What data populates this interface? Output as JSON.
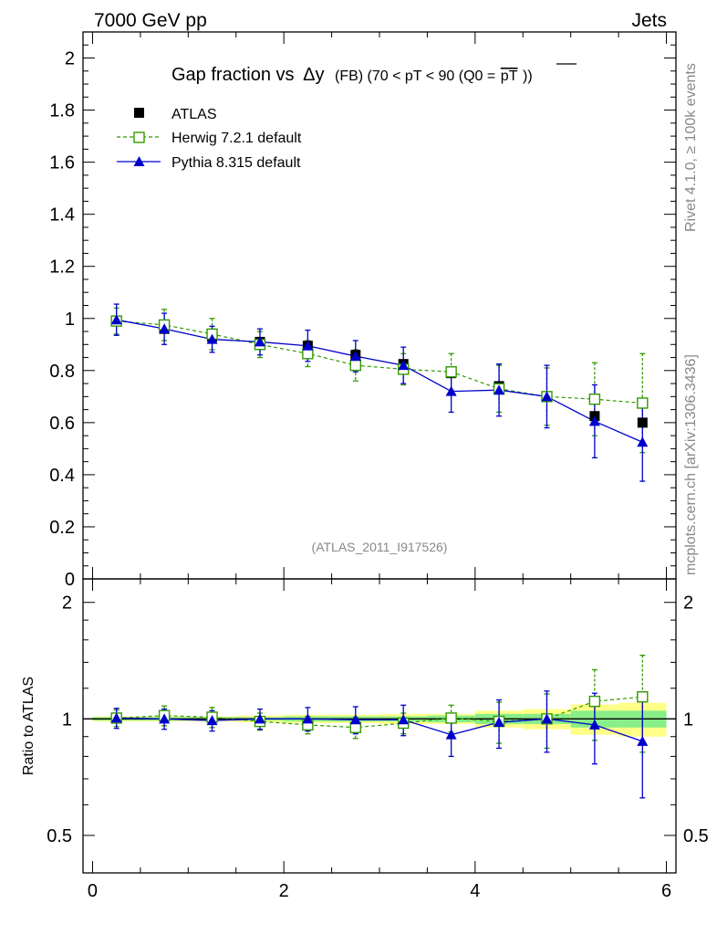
{
  "header": {
    "left": "7000 GeV pp",
    "right": "Jets"
  },
  "side_labels": {
    "rivet": "Rivet 4.1.0, ≥ 100k events",
    "mcplots": "mcplots.cern.ch [arXiv:1306.3436]"
  },
  "chart_data": [
    {
      "type": "scatter",
      "title": "Gap fraction vsΔy (FB) (70 < pT <  90 (Q0 =pT))",
      "title_parts": {
        "main": "Gap fraction vs",
        "delta": "Δy",
        "tail": "(FB) (70 < pT <  90 (Q0 =",
        "overlined": "pT",
        "end": "))"
      },
      "analysis_id": "(ATLAS_2011_I917526)",
      "xlim": [
        -0.1,
        6.1
      ],
      "ylim": [
        0,
        2.1
      ],
      "y_ticks": [
        0,
        0.2,
        0.4,
        0.6,
        0.8,
        1,
        1.2,
        1.4,
        1.6,
        1.8,
        2
      ],
      "y_tick_labels": [
        "0",
        "0.2",
        "0.4",
        "0.6",
        "0.8",
        "1",
        "1.2",
        "1.4",
        "1.6",
        "1.8",
        "2"
      ],
      "x": [
        0.25,
        0.75,
        1.25,
        1.75,
        2.25,
        2.75,
        3.25,
        3.75,
        4.25,
        4.75,
        5.25,
        5.75
      ],
      "legend": [
        "ATLAS",
        "Herwig 7.2.1 default",
        "Pythia 8.315 default"
      ],
      "series": [
        {
          "name": "ATLAS",
          "marker": "filled-square",
          "color": "#000000",
          "values": [
            0.99,
            0.96,
            0.93,
            0.91,
            0.895,
            0.86,
            0.825,
            0.79,
            0.74,
            0.7,
            0.625,
            0.6
          ]
        },
        {
          "name": "Herwig 7.2.1 default",
          "marker": "open-square",
          "color": "#339900",
          "values": [
            0.99,
            0.975,
            0.94,
            0.9,
            0.865,
            0.82,
            0.805,
            0.795,
            0.73,
            0.7,
            0.69,
            0.675
          ],
          "errors": [
            0.05,
            0.06,
            0.06,
            0.05,
            0.05,
            0.06,
            0.06,
            0.07,
            0.09,
            0.11,
            0.14,
            0.19
          ]
        },
        {
          "name": "Pythia 8.315 default",
          "marker": "filled-triangle",
          "color": "#0000cc",
          "values": [
            0.995,
            0.96,
            0.92,
            0.91,
            0.895,
            0.855,
            0.82,
            0.72,
            0.725,
            0.7,
            0.605,
            0.525
          ],
          "errors": [
            0.06,
            0.06,
            0.05,
            0.05,
            0.06,
            0.06,
            0.07,
            0.08,
            0.1,
            0.12,
            0.14,
            0.15
          ]
        }
      ]
    },
    {
      "type": "scatter",
      "ylabel": "Ratio to ATLAS",
      "xlim": [
        -0.1,
        6.1
      ],
      "ylim": [
        0.4,
        2.3
      ],
      "log_y": true,
      "y_ticks": [
        0.5,
        1,
        2
      ],
      "y_tick_labels": [
        "0.5",
        "1",
        "2"
      ],
      "x_ticks": [
        0,
        2,
        4,
        6
      ],
      "x_tick_labels": [
        "0",
        "2",
        "4",
        "6"
      ],
      "x": [
        0.25,
        0.75,
        1.25,
        1.75,
        2.25,
        2.75,
        3.25,
        3.75,
        4.25,
        4.75,
        5.25,
        5.75
      ],
      "bands": {
        "inner_color": "#88ee88",
        "outer_color": "#ffff88",
        "inner": [
          0.01,
          0.01,
          0.01,
          0.01,
          0.015,
          0.015,
          0.015,
          0.02,
          0.03,
          0.03,
          0.05,
          0.05
        ],
        "outer": [
          0.015,
          0.015,
          0.015,
          0.02,
          0.025,
          0.025,
          0.03,
          0.03,
          0.05,
          0.06,
          0.09,
          0.1
        ]
      },
      "series": [
        {
          "name": "Herwig 7.2.1 default",
          "color": "#339900",
          "values": [
            1.005,
            1.02,
            1.01,
            0.985,
            0.965,
            0.95,
            0.975,
            1.005,
            0.985,
            1.0,
            1.11,
            1.14
          ],
          "errors": [
            0.05,
            0.06,
            0.06,
            0.05,
            0.05,
            0.06,
            0.06,
            0.08,
            0.12,
            0.16,
            0.23,
            0.32
          ]
        },
        {
          "name": "Pythia 8.315 default",
          "color": "#0000cc",
          "values": [
            1.005,
            1.0,
            0.99,
            1.0,
            1.0,
            0.995,
            0.995,
            0.91,
            0.98,
            1.0,
            0.965,
            0.875
          ],
          "errors": [
            0.06,
            0.06,
            0.06,
            0.06,
            0.07,
            0.08,
            0.09,
            0.11,
            0.14,
            0.18,
            0.2,
            0.25
          ]
        }
      ]
    }
  ]
}
